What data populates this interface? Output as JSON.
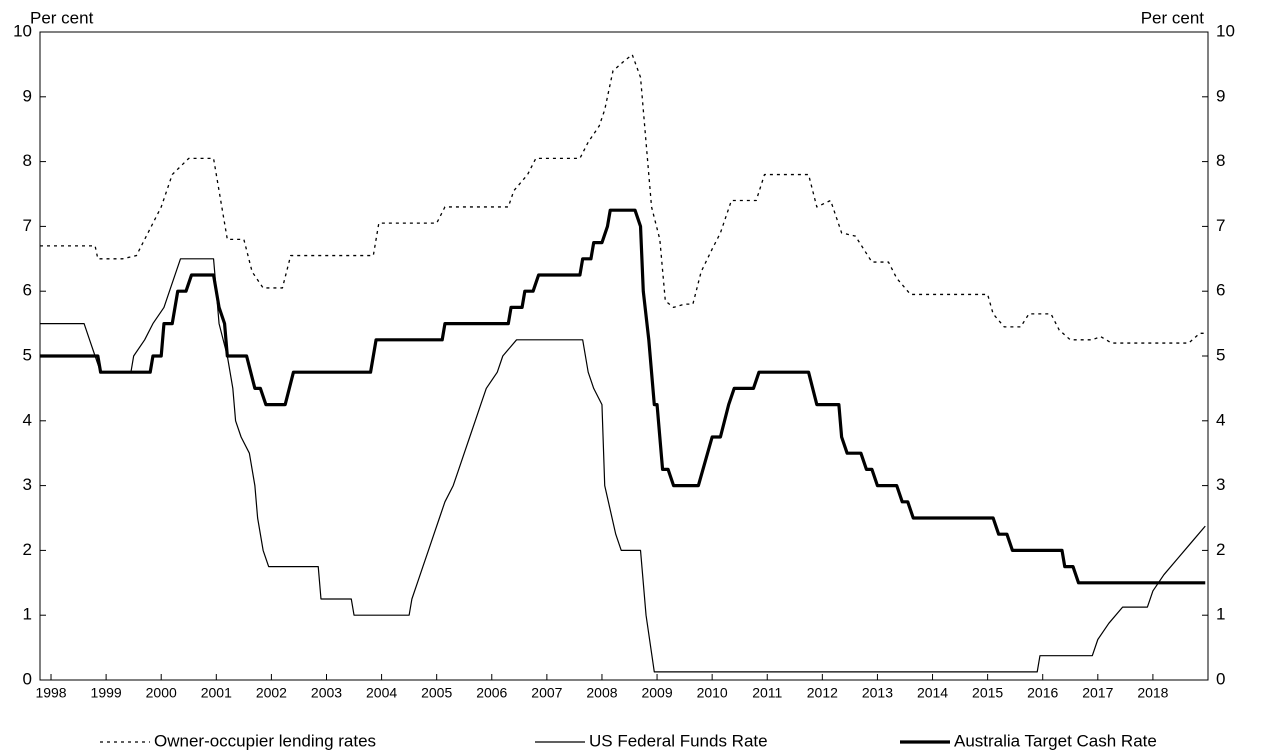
{
  "chart_data": {
    "type": "line",
    "y_label": "Per cent",
    "y2_label": "Per cent",
    "xlim": [
      1997.8,
      2019.0
    ],
    "xticks": [
      1998,
      1999,
      2000,
      2001,
      2002,
      2003,
      2004,
      2005,
      2006,
      2007,
      2008,
      2009,
      2010,
      2011,
      2012,
      2013,
      2014,
      2015,
      2016,
      2017,
      2018
    ],
    "ylim": [
      0,
      10
    ],
    "yticks": [
      0,
      1,
      2,
      3,
      4,
      5,
      6,
      7,
      8,
      9,
      10
    ],
    "y2lim": [
      0,
      10
    ],
    "y2ticks": [
      0,
      1,
      2,
      3,
      4,
      5,
      6,
      7,
      8,
      9,
      10
    ],
    "legend": "bottom",
    "series": [
      {
        "name": "Owner-occupier lending rates",
        "color": "#000000",
        "style": "dotted",
        "x": [
          1997.8,
          1998.8,
          1998.85,
          1999.3,
          1999.55,
          1999.7,
          2000.0,
          2000.2,
          2000.5,
          2000.95,
          2001.1,
          2001.2,
          2001.5,
          2001.65,
          2001.85,
          2002.2,
          2002.35,
          2003.85,
          2003.95,
          2005.0,
          2005.15,
          2006.3,
          2006.4,
          2006.65,
          2006.8,
          2007.6,
          2007.75,
          2007.95,
          2008.05,
          2008.2,
          2008.4,
          2008.55,
          2008.7,
          2008.8,
          2008.9,
          2009.05,
          2009.15,
          2009.3,
          2009.5,
          2009.65,
          2009.8,
          2010.0,
          2010.15,
          2010.35,
          2010.8,
          2010.95,
          2011.75,
          2011.9,
          2012.15,
          2012.35,
          2012.6,
          2012.75,
          2012.9,
          2013.2,
          2013.35,
          2013.6,
          2015.0,
          2015.1,
          2015.3,
          2015.6,
          2015.75,
          2016.15,
          2016.3,
          2016.5,
          2016.9,
          2017.05,
          2017.25,
          2018.65,
          2018.85,
          2018.95
        ],
        "values": [
          6.7,
          6.7,
          6.5,
          6.5,
          6.55,
          6.8,
          7.3,
          7.8,
          8.05,
          8.05,
          7.3,
          6.8,
          6.8,
          6.3,
          6.05,
          6.05,
          6.55,
          6.55,
          7.05,
          7.05,
          7.3,
          7.3,
          7.55,
          7.8,
          8.05,
          8.05,
          8.3,
          8.55,
          8.8,
          9.4,
          9.55,
          9.65,
          9.3,
          8.3,
          7.3,
          6.8,
          5.85,
          5.75,
          5.8,
          5.8,
          6.3,
          6.65,
          6.9,
          7.4,
          7.4,
          7.8,
          7.8,
          7.3,
          7.4,
          6.9,
          6.85,
          6.65,
          6.45,
          6.45,
          6.2,
          5.95,
          5.95,
          5.65,
          5.45,
          5.45,
          5.65,
          5.65,
          5.4,
          5.25,
          5.25,
          5.3,
          5.2,
          5.2,
          5.35,
          5.35
        ]
      },
      {
        "name": "US Federal Funds Rate",
        "color": "#000000",
        "style": "thin",
        "x": [
          1997.8,
          1998.6,
          1998.7,
          1998.8,
          1998.9,
          1999.45,
          1999.5,
          1999.7,
          1999.85,
          2000.05,
          2000.15,
          2000.35,
          2000.95,
          2001.0,
          2001.05,
          2001.2,
          2001.3,
          2001.35,
          2001.45,
          2001.6,
          2001.7,
          2001.75,
          2001.85,
          2001.95,
          2002.85,
          2002.9,
          2003.45,
          2003.5,
          2004.5,
          2004.55,
          2004.65,
          2004.75,
          2004.85,
          2004.95,
          2005.05,
          2005.15,
          2005.3,
          2005.4,
          2005.5,
          2005.6,
          2005.7,
          2005.8,
          2005.9,
          2006.1,
          2006.2,
          2006.45,
          2007.65,
          2007.75,
          2007.85,
          2008.0,
          2008.05,
          2008.25,
          2008.35,
          2008.7,
          2008.8,
          2008.95,
          2015.9,
          2015.95,
          2016.9,
          2017.0,
          2017.2,
          2017.45,
          2017.9,
          2018.0,
          2018.2,
          2018.45,
          2018.7,
          2018.95
        ],
        "values": [
          5.5,
          5.5,
          5.25,
          5.0,
          4.75,
          4.75,
          5.0,
          5.25,
          5.5,
          5.75,
          6.0,
          6.5,
          6.5,
          6.0,
          5.5,
          5.0,
          4.5,
          4.0,
          3.75,
          3.5,
          3.0,
          2.5,
          2.0,
          1.75,
          1.75,
          1.25,
          1.25,
          1.0,
          1.0,
          1.25,
          1.5,
          1.75,
          2.0,
          2.25,
          2.5,
          2.75,
          3.0,
          3.25,
          3.5,
          3.75,
          4.0,
          4.25,
          4.5,
          4.75,
          5.0,
          5.25,
          5.25,
          4.75,
          4.5,
          4.25,
          3.0,
          2.25,
          2.0,
          2.0,
          1.0,
          0.125,
          0.125,
          0.375,
          0.375,
          0.625,
          0.875,
          1.125,
          1.125,
          1.375,
          1.625,
          1.875,
          2.125,
          2.375
        ]
      },
      {
        "name": "Australia Target Cash Rate",
        "color": "#000000",
        "style": "thick",
        "x": [
          1997.8,
          1998.85,
          1998.9,
          1999.8,
          1999.85,
          2000.0,
          2000.05,
          2000.2,
          2000.3,
          2000.45,
          2000.55,
          2000.95,
          2001.05,
          2001.15,
          2001.2,
          2001.55,
          2001.7,
          2001.8,
          2001.9,
          2002.25,
          2002.4,
          2003.8,
          2003.9,
          2005.1,
          2005.15,
          2006.3,
          2006.35,
          2006.55,
          2006.6,
          2006.75,
          2006.85,
          2007.6,
          2007.65,
          2007.8,
          2007.85,
          2008.0,
          2008.1,
          2008.15,
          2008.6,
          2008.7,
          2008.75,
          2008.85,
          2008.95,
          2009.0,
          2009.1,
          2009.2,
          2009.3,
          2009.75,
          2010.0,
          2010.15,
          2010.3,
          2010.4,
          2010.75,
          2010.85,
          2011.75,
          2011.9,
          2012.3,
          2012.35,
          2012.45,
          2012.7,
          2012.8,
          2012.9,
          2013.0,
          2013.35,
          2013.45,
          2013.55,
          2013.65,
          2015.1,
          2015.2,
          2015.35,
          2015.45,
          2016.35,
          2016.4,
          2016.55,
          2016.65,
          2018.95
        ],
        "values": [
          5.0,
          5.0,
          4.75,
          4.75,
          5.0,
          5.0,
          5.5,
          5.5,
          6.0,
          6.0,
          6.25,
          6.25,
          5.75,
          5.5,
          5.0,
          5.0,
          4.5,
          4.5,
          4.25,
          4.25,
          4.75,
          4.75,
          5.25,
          5.25,
          5.5,
          5.5,
          5.75,
          5.75,
          6.0,
          6.0,
          6.25,
          6.25,
          6.5,
          6.5,
          6.75,
          6.75,
          7.0,
          7.25,
          7.25,
          7.0,
          6.0,
          5.25,
          4.25,
          4.25,
          3.25,
          3.25,
          3.0,
          3.0,
          3.75,
          3.75,
          4.25,
          4.5,
          4.5,
          4.75,
          4.75,
          4.25,
          4.25,
          3.75,
          3.5,
          3.5,
          3.25,
          3.25,
          3.0,
          3.0,
          2.75,
          2.75,
          2.5,
          2.5,
          2.25,
          2.25,
          2.0,
          2.0,
          1.75,
          1.75,
          1.5,
          1.5
        ]
      }
    ]
  }
}
